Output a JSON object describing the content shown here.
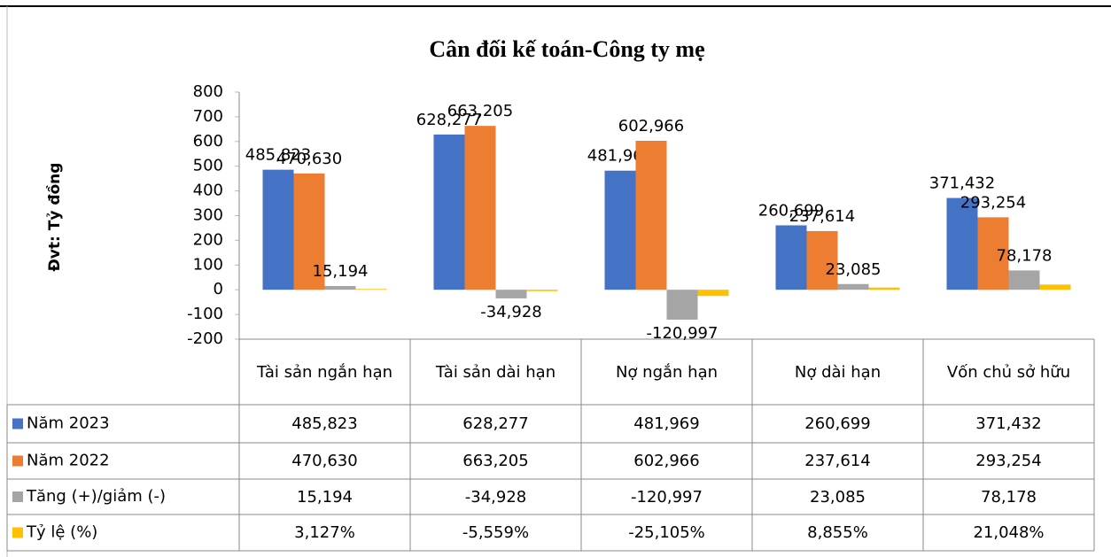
{
  "chart_data": {
    "type": "bar",
    "title": "Cân đối kế toán-Công ty mẹ",
    "y_label": "Đvt: Tỷ đồng",
    "categories": [
      "Tài sản ngắn hạn",
      "Tài sản dài hạn",
      "Nợ ngắn hạn",
      "Nợ dài hạn",
      "Vốn chủ sở hữu"
    ],
    "series": [
      {
        "name": "Năm 2023",
        "color": "#4472c4",
        "values": [
          485.823,
          628.277,
          481.969,
          260.699,
          371.432
        ],
        "value_labels": [
          "485,823",
          "628,277",
          "481,969",
          "260,699",
          "371,432"
        ]
      },
      {
        "name": "Năm 2022",
        "color": "#ed7d31",
        "values": [
          470.63,
          663.205,
          602.966,
          237.614,
          293.254
        ],
        "value_labels": [
          "470,630",
          "663,205",
          "602,966",
          "237,614",
          "293,254"
        ]
      },
      {
        "name": "Tăng (+)/giảm (-)",
        "color": "#a5a5a5",
        "values": [
          15.194,
          -34.928,
          -120.997,
          23.085,
          78.178
        ],
        "value_labels": [
          "15,194",
          "-34,928",
          "-120,997",
          "23,085",
          "78,178"
        ]
      },
      {
        "name": "Tỷ lệ (%)",
        "color": "#ffc000",
        "values": [
          3.127,
          -5.559,
          -25.105,
          8.855,
          21.048
        ],
        "value_labels": [
          "3,127%",
          "-5,559%",
          "-25,105%",
          "8,855%",
          "21,048%"
        ]
      }
    ],
    "ylim": [
      -200,
      800
    ],
    "yticks": [
      -200,
      -100,
      0,
      100,
      200,
      300,
      400,
      500,
      600,
      700,
      800
    ]
  }
}
